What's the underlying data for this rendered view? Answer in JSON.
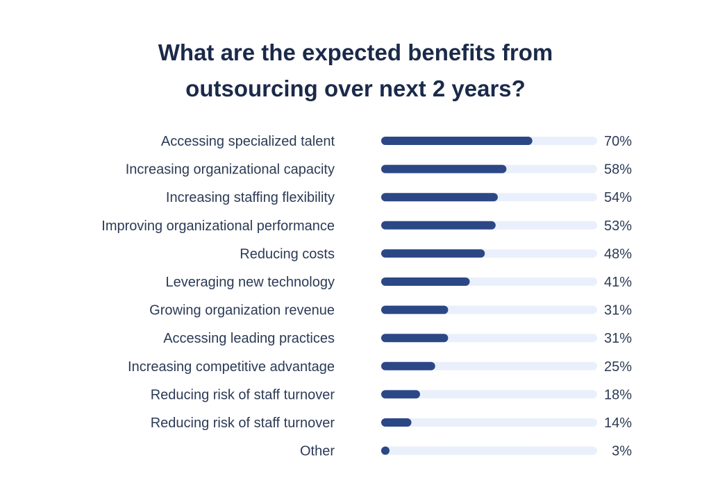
{
  "title_lines": [
    "What are the expected benefits from",
    "outsourcing over next 2 years?"
  ],
  "colors": {
    "bar": "#2c4785",
    "track": "#e9f0fb",
    "text": "#2b3a55",
    "title": "#1b2a4a"
  },
  "chart_data": {
    "type": "bar",
    "orientation": "horizontal",
    "title": "What are the expected benefits from outsourcing over next 2 years?",
    "xlabel": "",
    "ylabel": "",
    "xlim": [
      0,
      100
    ],
    "value_suffix": "%",
    "grid": false,
    "legend": "none",
    "categories": [
      "Accessing specialized talent",
      "Increasing organizational capacity",
      "Increasing staffing flexibility",
      "Improving organizational performance",
      "Reducing costs",
      "Leveraging new technology",
      "Growing organization revenue",
      "Accessing leading practices",
      "Increasing competitive advantage",
      "Reducing risk of staff turnover",
      "Reducing risk of staff turnover",
      "Other"
    ],
    "values": [
      70,
      58,
      54,
      53,
      48,
      41,
      31,
      31,
      25,
      18,
      14,
      3
    ],
    "value_labels": [
      "70%",
      "58%",
      "54%",
      "53%",
      "48%",
      "41%",
      "31%",
      "31%",
      "25%",
      "18%",
      "14%",
      "3%"
    ]
  }
}
